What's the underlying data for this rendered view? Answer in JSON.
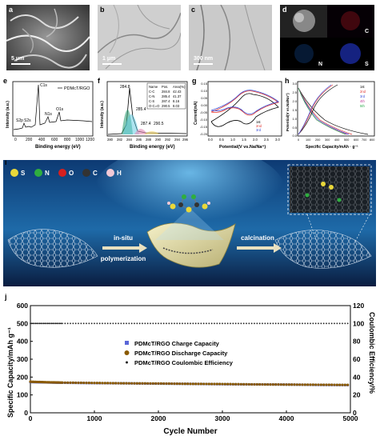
{
  "panels": {
    "a": {
      "label": "a",
      "scale": "5 μm"
    },
    "b": {
      "label": "b",
      "scale": "1 μm"
    },
    "c": {
      "label": "c",
      "scale": "300 nm"
    },
    "d": {
      "label": "d",
      "maps": [
        "C",
        "N",
        "S"
      ]
    },
    "e": {
      "label": "e",
      "legend": "PDMcT/RGO",
      "xlabel": "Binding energy (eV)",
      "ylabel": "Intensity (a.u.)",
      "peaks": [
        "C1s",
        "N1s",
        "O1s",
        "S2p",
        "S2s"
      ],
      "xticks": [
        "0",
        "200",
        "400",
        "600",
        "800",
        "1000",
        "1200"
      ]
    },
    "f": {
      "label": "f",
      "xlabel": "Binding energy (eV)",
      "ylabel": "Intensity (a.u.)",
      "xticks": [
        "280",
        "282",
        "284",
        "286",
        "288",
        "290",
        "292",
        "294",
        "296"
      ],
      "peak_labels": [
        "284.8",
        "285.4",
        "287.4",
        "290.5"
      ],
      "table": {
        "headers": [
          "Name",
          "Pos.",
          "Area(%)"
        ],
        "rows": [
          [
            "C-C",
            "284.8",
            "42.43"
          ],
          [
            "C-N",
            "285.4",
            "41.37"
          ],
          [
            "C-S",
            "287.4",
            "8.16"
          ],
          [
            "O-C=O",
            "290.5",
            "8.03"
          ]
        ]
      }
    },
    "g": {
      "label": "g",
      "xlabel": "Potential(V vs.Na/Na⁺)",
      "ylabel": "Current(mA)",
      "legend": [
        "1st",
        "2nd",
        "3rd"
      ],
      "xticks": [
        "0.0",
        "0.5",
        "1.0",
        "1.5",
        "2.0",
        "2.5",
        "3.0"
      ],
      "yticks": [
        "0.15",
        "0.10",
        "0.05",
        "0.00",
        "-0.05",
        "-0.10",
        "-0.15",
        "-0.20"
      ]
    },
    "h": {
      "label": "h",
      "xlabel": "Specific Capacity/mAh · g⁻¹",
      "ylabel": "Potential(V vs.Na/Na⁺)",
      "legend": [
        "1st",
        "2nd",
        "3rd",
        "4th",
        "5th"
      ],
      "xticks": [
        "0",
        "100",
        "200",
        "300",
        "400",
        "500",
        "600",
        "700",
        "800"
      ],
      "yticks": [
        "3.0",
        "2.5",
        "2.0",
        "1.5",
        "1.0",
        "0.5",
        "0.0"
      ]
    },
    "i": {
      "label": "i",
      "legend": [
        {
          "sym": "S",
          "color": "#e9d83a"
        },
        {
          "sym": "N",
          "color": "#2fae3f"
        },
        {
          "sym": "O",
          "color": "#d62020"
        },
        {
          "sym": "C",
          "color": "#333333"
        },
        {
          "sym": "H",
          "color": "#f2c9d6"
        }
      ],
      "step1": "in-situ",
      "step1b": "polymerization",
      "step2": "calcination"
    }
  },
  "chart_data": {
    "type": "scatter",
    "label": "j",
    "xlabel": "Cycle Number",
    "ylabel": "Specific Capacity/mAh g⁻¹",
    "ylabel2": "Coulombic Efficiency/%",
    "xlim": [
      0,
      5000
    ],
    "ylim": [
      0,
      600
    ],
    "ylim2": [
      0,
      120
    ],
    "xticks": [
      "0",
      "1000",
      "2000",
      "3000",
      "4000",
      "5000"
    ],
    "yticks": [
      "0",
      "100",
      "200",
      "300",
      "400",
      "500",
      "600"
    ],
    "yticks2": [
      "0",
      "20",
      "40",
      "60",
      "80",
      "100",
      "120"
    ],
    "series": [
      {
        "name": "PDMcT/RGO Charge Capacity",
        "color": "#5a66d8",
        "x": [
          0,
          250,
          500,
          1000,
          1500,
          2000,
          2500,
          3000,
          3500,
          4000,
          4500,
          5000
        ],
        "values": [
          172,
          170,
          168,
          166,
          165,
          163,
          162,
          160,
          159,
          158,
          156,
          155
        ]
      },
      {
        "name": "PDMcT/RGO Discharge Capacity",
        "color": "#8a5a00",
        "x": [
          0,
          250,
          500,
          1000,
          1500,
          2000,
          2500,
          3000,
          3500,
          4000,
          4500,
          5000
        ],
        "values": [
          174,
          171,
          169,
          167,
          165,
          164,
          162,
          161,
          159,
          158,
          157,
          156
        ]
      },
      {
        "name": "PDMcT/RGO Coulombic Efficiency",
        "color": "#222222",
        "x": [
          0,
          250,
          500,
          1000,
          1500,
          2000,
          2500,
          3000,
          3500,
          4000,
          4500,
          5000
        ],
        "values": [
          100,
          100,
          100,
          100,
          100,
          100,
          100,
          100,
          100,
          100,
          100,
          100
        ]
      }
    ]
  }
}
